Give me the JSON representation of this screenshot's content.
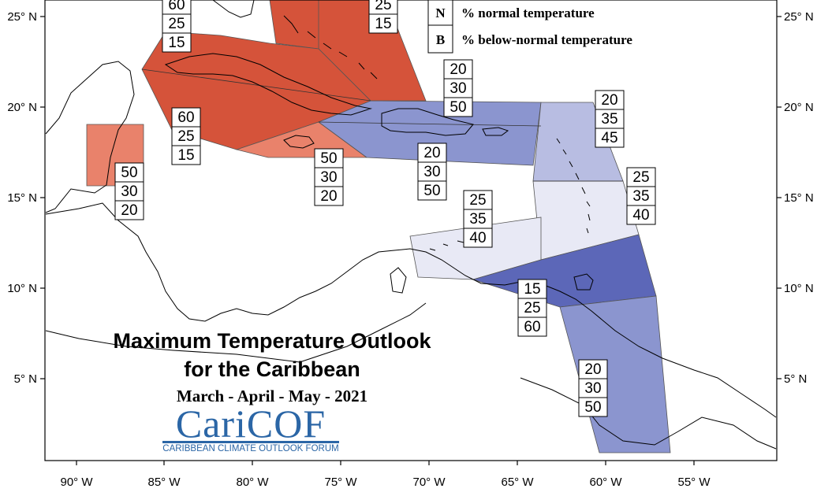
{
  "title": {
    "line1": "Maximum Temperature Outlook",
    "line2": "for the Caribbean",
    "season": "March - April - May - 2021"
  },
  "logo": {
    "name": "CariCOF",
    "subtitle": "CARIBBEAN CLIMATE OUTLOOK FORUM"
  },
  "legend": [
    {
      "letter": "N",
      "text": "% normal temperature"
    },
    {
      "letter": "B",
      "text": "% below-normal temperature"
    }
  ],
  "axes": {
    "lon_labels": [
      "90° W",
      "85° W",
      "80° W",
      "75° W",
      "70° W",
      "65° W",
      "60° W",
      "55° W"
    ],
    "lat_labels": [
      "25° N",
      "20° N",
      "15° N",
      "10° N",
      "5° N"
    ]
  },
  "colors": {
    "above_60": "#d5533a",
    "above_50": "#e9826b",
    "below_50": "#8b95cf",
    "below_45": "#b8bde2",
    "below_40": "#e8e9f5",
    "below_60": "#5c67b8"
  },
  "regions": [
    {
      "name": "bahamas-north",
      "probs": [
        "60",
        "25",
        "15"
      ],
      "color_key": "above_60"
    },
    {
      "name": "bahamas-east",
      "probs": [
        "25",
        "15"
      ],
      "color_key": "above_60"
    },
    {
      "name": "cuba",
      "probs": [
        "60",
        "25",
        "15"
      ],
      "color_key": "above_60"
    },
    {
      "name": "belize",
      "probs": [
        "50",
        "30",
        "20"
      ],
      "color_key": "above_50"
    },
    {
      "name": "jamaica",
      "probs": [
        "50",
        "30",
        "20"
      ],
      "color_key": "above_50"
    },
    {
      "name": "turks-caicos",
      "probs": [
        "20",
        "30",
        "50"
      ],
      "color_key": "below_50"
    },
    {
      "name": "hispaniola-puerto-rico",
      "probs": [
        "20",
        "30",
        "50"
      ],
      "color_key": "below_50"
    },
    {
      "name": "leeward-islands",
      "probs": [
        "20",
        "35",
        "45"
      ],
      "color_key": "below_45"
    },
    {
      "name": "windward-islands",
      "probs": [
        "25",
        "35",
        "40"
      ],
      "color_key": "below_40"
    },
    {
      "name": "abc-islands",
      "probs": [
        "25",
        "35",
        "40"
      ],
      "color_key": "below_40"
    },
    {
      "name": "trinidad-tobago",
      "probs": [
        "15",
        "25",
        "60"
      ],
      "color_key": "below_60"
    },
    {
      "name": "guianas",
      "probs": [
        "20",
        "30",
        "50"
      ],
      "color_key": "below_50"
    }
  ]
}
